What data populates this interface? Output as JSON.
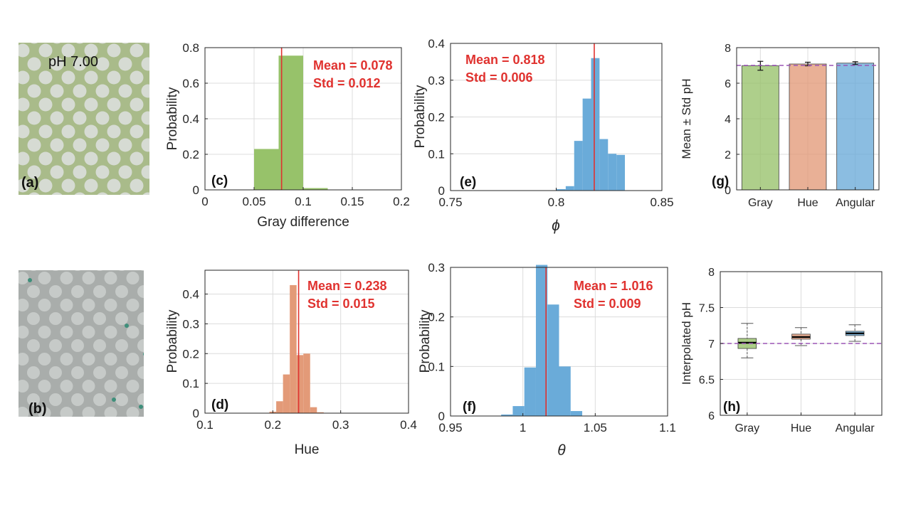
{
  "photos": {
    "a": {
      "label": "(a)",
      "ph_text": "pH 7.00",
      "bg": "#a9bb8a",
      "dot": "#d6dbd3"
    },
    "b": {
      "label": "(b)",
      "bg": "#a9adab",
      "dot": "#c6cac8"
    }
  },
  "colors": {
    "green": "#97c26a",
    "orange": "#e39a78",
    "blue": "#6aabd9",
    "redline": "#e0322f",
    "dashed": "#9b55b6"
  },
  "chart_data": [
    {
      "id": "c",
      "panel_label": "(c)",
      "type": "histogram",
      "xlabel": "Gray difference",
      "ylabel": "Probability",
      "xlim": [
        0,
        0.2
      ],
      "ylim": [
        0,
        0.8
      ],
      "xticks": [
        0,
        0.05,
        0.1,
        0.15,
        0.2
      ],
      "xtick_labels": [
        "0",
        "0.05",
        "0.1",
        "0.15",
        "0.2"
      ],
      "yticks": [
        0,
        0.2,
        0.4,
        0.6,
        0.8
      ],
      "ytick_labels": [
        "0",
        "0.2",
        "0.4",
        "0.6",
        "0.8"
      ],
      "bin_edges": [
        0.025,
        0.05,
        0.075,
        0.1,
        0.125,
        0.15
      ],
      "values": [
        0.0,
        0.23,
        0.755,
        0.01,
        0.0
      ],
      "mean_line": 0.078,
      "mean_text": "Mean = 0.078",
      "std_text": "Std = 0.012",
      "color": "green"
    },
    {
      "id": "d",
      "panel_label": "(d)",
      "type": "histogram",
      "xlabel": "Hue",
      "ylabel": "Probability",
      "xlim": [
        0.1,
        0.4
      ],
      "ylim": [
        0,
        0.48
      ],
      "xticks": [
        0.1,
        0.2,
        0.3,
        0.4
      ],
      "xtick_labels": [
        "0.1",
        "0.2",
        "0.3",
        "0.4"
      ],
      "yticks": [
        0,
        0.1,
        0.2,
        0.3,
        0.4
      ],
      "ytick_labels": [
        "0",
        "0.1",
        "0.2",
        "0.3",
        "0.4"
      ],
      "bin_edges": [
        0.195,
        0.205,
        0.215,
        0.225,
        0.235,
        0.245,
        0.255,
        0.265,
        0.275
      ],
      "values": [
        0.005,
        0.04,
        0.13,
        0.43,
        0.195,
        0.2,
        0.02,
        0.003
      ],
      "mean_line": 0.238,
      "mean_text": "Mean = 0.238",
      "std_text": "Std = 0.015",
      "color": "orange"
    },
    {
      "id": "e",
      "panel_label": "(e)",
      "type": "histogram",
      "xlabel": "ϕ",
      "ylabel": "Probability",
      "xlim": [
        0.75,
        0.85
      ],
      "ylim": [
        0,
        0.4
      ],
      "xticks": [
        0.75,
        0.8,
        0.85
      ],
      "xtick_labels": [
        "0.75",
        "0.8",
        "0.85"
      ],
      "yticks": [
        0,
        0.1,
        0.2,
        0.3,
        0.4
      ],
      "ytick_labels": [
        "0",
        "0.1",
        "0.2",
        "0.3",
        "0.4"
      ],
      "bin_edges": [
        0.8,
        0.8045,
        0.8085,
        0.8125,
        0.8165,
        0.8205,
        0.8245,
        0.8285,
        0.8325
      ],
      "values": [
        0.004,
        0.012,
        0.135,
        0.25,
        0.36,
        0.14,
        0.1,
        0.097
      ],
      "mean_line": 0.818,
      "mean_text": "Mean = 0.818",
      "std_text": "Std = 0.006",
      "color": "blue"
    },
    {
      "id": "f",
      "panel_label": "(f)",
      "type": "histogram",
      "xlabel": "θ",
      "ylabel": "Probability",
      "xlim": [
        0.95,
        1.1
      ],
      "ylim": [
        0,
        0.3
      ],
      "xticks": [
        0.95,
        1.0,
        1.05,
        1.1
      ],
      "xtick_labels": [
        "0.95",
        "1",
        "1.05",
        "1.1"
      ],
      "yticks": [
        0,
        0.1,
        0.2,
        0.3
      ],
      "ytick_labels": [
        "0",
        "0.1",
        "0.2",
        "0.3"
      ],
      "bin_edges": [
        0.985,
        0.993,
        1.001,
        1.009,
        1.017,
        1.025,
        1.033,
        1.041
      ],
      "values": [
        0.003,
        0.02,
        0.098,
        0.305,
        0.225,
        0.1,
        0.01
      ],
      "mean_line": 1.016,
      "mean_text": "Mean = 1.016",
      "std_text": "Std = 0.009",
      "color": "blue"
    },
    {
      "id": "g",
      "panel_label": "(g)",
      "type": "bar",
      "ylabel": "Mean ± Std pH",
      "categories": [
        "Gray",
        "Hue",
        "Angular"
      ],
      "values": [
        6.98,
        7.08,
        7.13
      ],
      "errors": [
        0.25,
        0.1,
        0.08
      ],
      "colors": [
        "green",
        "orange",
        "blue"
      ],
      "ylim": [
        0,
        8
      ],
      "yticks": [
        0,
        2,
        4,
        6,
        8
      ],
      "ytick_labels": [
        "0",
        "2",
        "4",
        "6",
        "8"
      ],
      "reference_line": 7.0
    },
    {
      "id": "h",
      "panel_label": "(h)",
      "type": "box",
      "ylabel": "Interpolated pH",
      "categories": [
        "Gray",
        "Hue",
        "Angular"
      ],
      "boxes": [
        {
          "min": 6.8,
          "q1": 6.93,
          "median": 7.01,
          "q3": 7.07,
          "max": 7.28
        },
        {
          "min": 6.97,
          "q1": 7.06,
          "median": 7.09,
          "q3": 7.13,
          "max": 7.22
        },
        {
          "min": 7.03,
          "q1": 7.11,
          "median": 7.14,
          "q3": 7.17,
          "max": 7.26
        }
      ],
      "colors": [
        "green",
        "orange",
        "blue"
      ],
      "ylim": [
        6,
        8
      ],
      "yticks": [
        6,
        6.5,
        7,
        7.5,
        8
      ],
      "ytick_labels": [
        "6",
        "6.5",
        "7",
        "7.5",
        "8"
      ],
      "reference_line": 7.0
    }
  ]
}
